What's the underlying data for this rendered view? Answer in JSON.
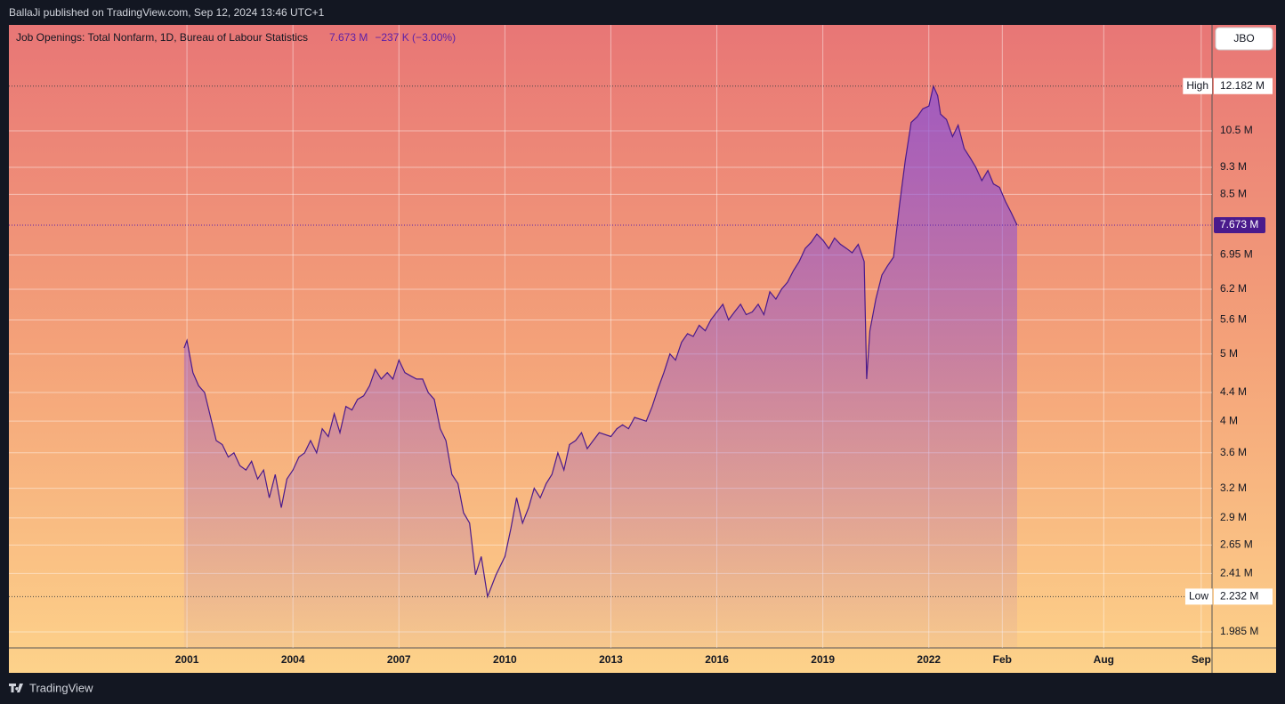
{
  "header": {
    "publisher": "BallaJi published on TradingView.com, Sep 12, 2024 13:46 UTC+1"
  },
  "footer": {
    "brand": "TradingView"
  },
  "chart_data": {
    "type": "area",
    "symbol": "JBO",
    "legend": {
      "title": "Job Openings: Total Nonfarm, 1D, Bureau of Labour Statistics",
      "value": "7.673 M",
      "change": "−237 K (−3.00%)"
    },
    "log_scale": true,
    "grid": true,
    "color": "#4a1a8c",
    "x": [
      2000.92,
      2001.0,
      2001.17,
      2001.33,
      2001.5,
      2001.67,
      2001.83,
      2002.0,
      2002.17,
      2002.33,
      2002.5,
      2002.67,
      2002.83,
      2003.0,
      2003.17,
      2003.33,
      2003.5,
      2003.67,
      2003.83,
      2004.0,
      2004.17,
      2004.33,
      2004.5,
      2004.67,
      2004.83,
      2005.0,
      2005.17,
      2005.33,
      2005.5,
      2005.67,
      2005.83,
      2006.0,
      2006.17,
      2006.33,
      2006.5,
      2006.67,
      2006.83,
      2007.0,
      2007.17,
      2007.33,
      2007.5,
      2007.67,
      2007.83,
      2008.0,
      2008.17,
      2008.33,
      2008.5,
      2008.67,
      2008.83,
      2009.0,
      2009.17,
      2009.33,
      2009.51,
      2009.75,
      2010.0,
      2010.17,
      2010.33,
      2010.5,
      2010.67,
      2010.83,
      2011.0,
      2011.17,
      2011.33,
      2011.5,
      2011.67,
      2011.83,
      2012.0,
      2012.17,
      2012.33,
      2012.5,
      2012.67,
      2013.0,
      2013.17,
      2013.33,
      2013.5,
      2013.67,
      2014.0,
      2014.17,
      2014.33,
      2014.5,
      2014.67,
      2014.83,
      2015.0,
      2015.17,
      2015.33,
      2015.5,
      2015.67,
      2015.83,
      2016.0,
      2016.17,
      2016.33,
      2016.5,
      2016.67,
      2016.83,
      2017.0,
      2017.17,
      2017.33,
      2017.5,
      2017.67,
      2017.83,
      2018.0,
      2018.17,
      2018.33,
      2018.5,
      2018.67,
      2018.83,
      2019.0,
      2019.17,
      2019.33,
      2019.5,
      2019.67,
      2019.83,
      2020.0,
      2020.17,
      2020.24,
      2020.33,
      2020.5,
      2020.67,
      2020.83,
      2021.0,
      2021.17,
      2021.33,
      2021.5,
      2021.67,
      2021.83,
      2022.0,
      2022.13,
      2022.25,
      2022.33,
      2022.5,
      2022.67,
      2022.83,
      2023.0,
      2023.17,
      2023.33,
      2023.5,
      2023.67,
      2023.83,
      2024.0,
      2024.17,
      2024.33,
      2024.5
    ],
    "values": [
      5.1,
      5.23,
      4.7,
      4.5,
      4.4,
      4.05,
      3.75,
      3.7,
      3.55,
      3.6,
      3.45,
      3.4,
      3.5,
      3.3,
      3.4,
      3.1,
      3.35,
      3.0,
      3.3,
      3.4,
      3.55,
      3.6,
      3.75,
      3.6,
      3.9,
      3.8,
      4.1,
      3.85,
      4.2,
      4.15,
      4.3,
      4.35,
      4.5,
      4.75,
      4.6,
      4.7,
      4.6,
      4.9,
      4.7,
      4.65,
      4.6,
      4.6,
      4.4,
      4.3,
      3.9,
      3.75,
      3.35,
      3.25,
      2.95,
      2.85,
      2.4,
      2.55,
      2.232,
      2.4,
      2.55,
      2.8,
      3.1,
      2.85,
      3.0,
      3.2,
      3.1,
      3.25,
      3.35,
      3.6,
      3.4,
      3.7,
      3.75,
      3.85,
      3.65,
      3.75,
      3.85,
      3.8,
      3.9,
      3.95,
      3.9,
      4.05,
      4.0,
      4.2,
      4.45,
      4.7,
      5.0,
      4.9,
      5.2,
      5.35,
      5.3,
      5.5,
      5.4,
      5.6,
      5.75,
      5.9,
      5.6,
      5.75,
      5.9,
      5.7,
      5.75,
      5.9,
      5.7,
      6.15,
      6.0,
      6.2,
      6.35,
      6.6,
      6.8,
      7.1,
      7.25,
      7.45,
      7.3,
      7.1,
      7.35,
      7.2,
      7.1,
      7.0,
      7.2,
      6.8,
      4.6,
      5.4,
      6.0,
      6.5,
      6.7,
      6.9,
      8.2,
      9.5,
      10.8,
      11.0,
      11.3,
      11.4,
      12.182,
      11.8,
      11.1,
      10.9,
      10.3,
      10.7,
      9.9,
      9.6,
      9.3,
      8.9,
      9.2,
      8.8,
      8.7,
      8.3,
      8.0,
      7.673
    ],
    "xlim": [
      1995.96,
      2024.68
    ],
    "ylim": [
      1.882,
      14.93
    ],
    "xticks": [
      2001,
      2004,
      2007,
      2010,
      2013,
      2016,
      2019,
      2022,
      {
        "value": 2024.08,
        "label": "Feb"
      },
      {
        "value": 2024.58,
        "label": "Aug"
      },
      {
        "value": 2024.67,
        "label": "Sep"
      }
    ],
    "yticks": [
      {
        "value": 1.985,
        "label": "1.985 M"
      },
      {
        "value": 2.41,
        "label": "2.41 M"
      },
      {
        "value": 2.65,
        "label": "2.65 M"
      },
      {
        "value": 2.9,
        "label": "2.9 M"
      },
      {
        "value": 3.2,
        "label": "3.2 M"
      },
      {
        "value": 3.6,
        "label": "3.6 M"
      },
      {
        "value": 4,
        "label": "4 M"
      },
      {
        "value": 4.4,
        "label": "4.4 M"
      },
      {
        "value": 5,
        "label": "5 M"
      },
      {
        "value": 5.6,
        "label": "5.6 M"
      },
      {
        "value": 6.2,
        "label": "6.2 M"
      },
      {
        "value": 6.95,
        "label": "6.95 M"
      },
      {
        "value": 8.5,
        "label": "8.5 M"
      },
      {
        "value": 9.3,
        "label": "9.3 M"
      },
      {
        "value": 10.5,
        "label": "10.5 M"
      }
    ],
    "annotations": [
      {
        "label": "High",
        "value": 12.182,
        "value_label": "12.182 M"
      },
      {
        "label": "Low",
        "value": 2.232,
        "value_label": "2.232 M"
      }
    ]
  }
}
